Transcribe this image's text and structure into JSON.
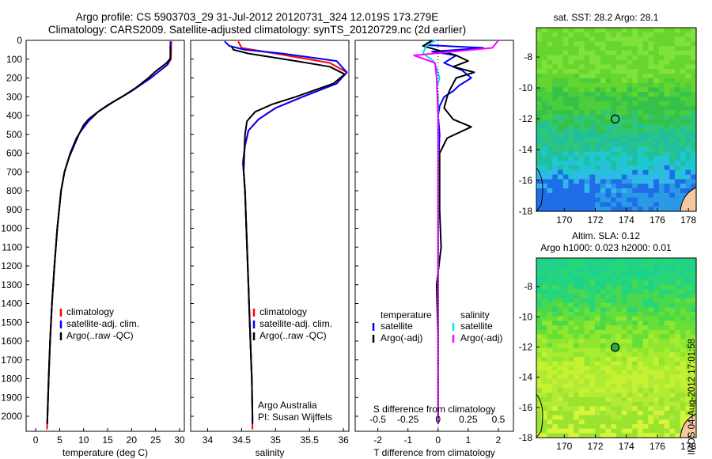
{
  "header": {
    "line1": "Argo profile: CS 5903703_29 31-Jul-2012 20120731_324 12.019S 173.279E",
    "line2": "Climatology: CARS2009. Satellite-adjusted climatology: synTS_20120729.nc (2d earlier)"
  },
  "colors": {
    "climatology": "#ff0000",
    "satellite": "#0000ff",
    "argo": "#000000",
    "sat_salinity": "#00e5ee",
    "argo_salinity": "#ff00ff"
  },
  "chart_data": [
    {
      "type": "line",
      "xlabel": "temperature (deg C)",
      "xticks": [
        0,
        5,
        10,
        15,
        20,
        25,
        30
      ],
      "xlim": [
        -2,
        31
      ],
      "ylim": [
        0,
        2080
      ],
      "yticks": [
        0,
        100,
        200,
        300,
        400,
        500,
        600,
        700,
        800,
        900,
        1000,
        1100,
        1200,
        1300,
        1400,
        1500,
        1600,
        1700,
        1800,
        1900,
        2000
      ],
      "legend": [
        "climatology",
        "satellite-adj. clim.",
        "Argo(..raw -QC)"
      ],
      "series": [
        {
          "name": "climatology",
          "color": "#ff0000",
          "points": [
            [
              28.3,
              5
            ],
            [
              28.2,
              100
            ],
            [
              27.5,
              130
            ],
            [
              24,
              200
            ],
            [
              20,
              270
            ],
            [
              16,
              330
            ],
            [
              13,
              380
            ],
            [
              11,
              430
            ],
            [
              9.5,
              480
            ],
            [
              8.5,
              520
            ],
            [
              7.2,
              600
            ],
            [
              6,
              700
            ],
            [
              5.3,
              800
            ],
            [
              4.9,
              900
            ],
            [
              4.5,
              1000
            ],
            [
              3.9,
              1200
            ],
            [
              3.4,
              1400
            ],
            [
              3.0,
              1600
            ],
            [
              2.7,
              1800
            ],
            [
              2.45,
              2000
            ],
            [
              2.35,
              2070
            ]
          ]
        },
        {
          "name": "satellite-adj. clim.",
          "color": "#0000ff",
          "points": [
            [
              28.1,
              5
            ],
            [
              28.1,
              100
            ],
            [
              27.4,
              130
            ],
            [
              24,
              200
            ],
            [
              20,
              270
            ],
            [
              16,
              330
            ],
            [
              13,
              380
            ],
            [
              11,
              430
            ],
            [
              9.5,
              480
            ],
            [
              8.5,
              520
            ],
            [
              7.2,
              600
            ],
            [
              6,
              700
            ],
            [
              5.3,
              800
            ],
            [
              4.9,
              900
            ],
            [
              4.5,
              1000
            ],
            [
              3.9,
              1200
            ],
            [
              3.4,
              1400
            ],
            [
              3.0,
              1600
            ],
            [
              2.7,
              1800
            ],
            [
              2.45,
              2000
            ],
            [
              2.4,
              2040
            ]
          ]
        },
        {
          "name": "Argo(..raw -QC)",
          "color": "#000000",
          "points": [
            [
              28.1,
              30
            ],
            [
              28.1,
              95
            ],
            [
              27.3,
              120
            ],
            [
              25,
              165
            ],
            [
              23.5,
              200
            ],
            [
              21,
              250
            ],
            [
              18,
              300
            ],
            [
              15,
              345
            ],
            [
              13,
              380
            ],
            [
              11,
              420
            ],
            [
              10,
              450
            ],
            [
              9,
              500
            ],
            [
              8,
              560
            ],
            [
              7,
              620
            ],
            [
              6,
              700
            ],
            [
              5.3,
              800
            ],
            [
              4.9,
              900
            ],
            [
              4.5,
              1000
            ],
            [
              3.9,
              1200
            ],
            [
              3.4,
              1400
            ],
            [
              3.0,
              1600
            ],
            [
              2.7,
              1800
            ],
            [
              2.45,
              2000
            ],
            [
              2.4,
              2040
            ]
          ]
        }
      ]
    },
    {
      "type": "line",
      "xlabel": "salinity",
      "xticks": [
        34,
        34.5,
        35,
        35.5,
        36
      ],
      "xlim": [
        33.75,
        36.08
      ],
      "ylim": [
        0,
        2080
      ],
      "legend": [
        "climatology",
        "satellite-adj. clim.",
        "Argo(..raw -QC)"
      ],
      "annotation": [
        "Argo Australia",
        "PI: Susan Wijffels"
      ],
      "series": [
        {
          "name": "climatology",
          "color": "#ff0000",
          "points": [
            [
              34.45,
              5
            ],
            [
              34.5,
              40
            ],
            [
              35.0,
              70
            ],
            [
              35.8,
              120
            ],
            [
              36.05,
              170
            ],
            [
              35.9,
              230
            ],
            [
              35.4,
              300
            ],
            [
              35.0,
              360
            ],
            [
              34.75,
              420
            ],
            [
              34.6,
              480
            ],
            [
              34.55,
              560
            ],
            [
              34.52,
              650
            ],
            [
              34.55,
              800
            ],
            [
              34.57,
              1000
            ],
            [
              34.6,
              1300
            ],
            [
              34.63,
              1600
            ],
            [
              34.65,
              1800
            ],
            [
              34.66,
              2000
            ],
            [
              34.66,
              2070
            ]
          ]
        },
        {
          "name": "satellite-adj. clim.",
          "color": "#0000ff",
          "points": [
            [
              34.25,
              5
            ],
            [
              34.32,
              30
            ],
            [
              34.55,
              50
            ],
            [
              35.1,
              70
            ],
            [
              35.9,
              110
            ],
            [
              36.05,
              170
            ],
            [
              35.9,
              230
            ],
            [
              35.4,
              300
            ],
            [
              35.0,
              360
            ],
            [
              34.75,
              420
            ],
            [
              34.6,
              480
            ],
            [
              34.55,
              560
            ],
            [
              34.52,
              650
            ],
            [
              34.55,
              800
            ],
            [
              34.57,
              1000
            ],
            [
              34.6,
              1300
            ],
            [
              34.63,
              1600
            ],
            [
              34.65,
              1800
            ],
            [
              34.66,
              2000
            ],
            [
              34.66,
              2040
            ]
          ]
        },
        {
          "name": "Argo(..raw -QC)",
          "color": "#000000",
          "points": [
            [
              34.35,
              30
            ],
            [
              34.38,
              50
            ],
            [
              34.6,
              70
            ],
            [
              35.3,
              110
            ],
            [
              35.8,
              140
            ],
            [
              36.02,
              180
            ],
            [
              35.85,
              230
            ],
            [
              35.3,
              300
            ],
            [
              34.95,
              340
            ],
            [
              34.7,
              380
            ],
            [
              34.58,
              430
            ],
            [
              34.55,
              500
            ],
            [
              34.54,
              600
            ],
            [
              34.53,
              700
            ],
            [
              34.55,
              800
            ],
            [
              34.57,
              1000
            ],
            [
              34.6,
              1300
            ],
            [
              34.63,
              1600
            ],
            [
              34.65,
              1800
            ],
            [
              34.66,
              2000
            ],
            [
              34.66,
              2040
            ]
          ]
        }
      ]
    },
    {
      "type": "line",
      "xlabel": "T difference from climatology",
      "xticks": [
        -2,
        -1,
        0,
        1,
        2
      ],
      "xlim": [
        -2.75,
        2.5
      ],
      "top_axis_label": "S difference from climatology",
      "top_ticks": [
        "-0.5",
        "-0.25",
        "0",
        "0.25",
        "0.5"
      ],
      "ylim": [
        0,
        2080
      ],
      "legend": {
        "temperature": [
          "satellite",
          "Argo(-adj)"
        ],
        "salinity": [
          "satellite",
          "Argo(-adj)"
        ]
      },
      "legend_titles": [
        "temperature",
        "salinity"
      ],
      "series": [
        {
          "name": "temperature satellite",
          "color": "#0000ff",
          "points": [
            [
              -0.2,
              0
            ],
            [
              -0.4,
              25
            ],
            [
              1.5,
              40
            ],
            [
              -0.2,
              60
            ],
            [
              0.6,
              80
            ],
            [
              0.2,
              120
            ],
            [
              0.8,
              160
            ],
            [
              1.1,
              200
            ],
            [
              0.7,
              240
            ],
            [
              0.5,
              270
            ],
            [
              0.2,
              300
            ],
            [
              0.05,
              350
            ],
            [
              0.0,
              400
            ],
            [
              0.05,
              500
            ],
            [
              0.0,
              700
            ],
            [
              0.0,
              1000
            ],
            [
              0.0,
              2040
            ]
          ]
        },
        {
          "name": "temperature Argo(-adj)",
          "color": "#000000",
          "points": [
            [
              -0.2,
              0
            ],
            [
              -0.5,
              30
            ],
            [
              0.6,
              80
            ],
            [
              1.0,
              110
            ],
            [
              0.5,
              140
            ],
            [
              1.2,
              170
            ],
            [
              0.6,
              200
            ],
            [
              0.4,
              260
            ],
            [
              0.3,
              300
            ],
            [
              0.2,
              360
            ],
            [
              0.5,
              420
            ],
            [
              1.1,
              460
            ],
            [
              0.3,
              520
            ],
            [
              0.05,
              600
            ],
            [
              0.05,
              900
            ],
            [
              0.1,
              1100
            ],
            [
              -0.05,
              1300
            ],
            [
              0.0,
              1600
            ],
            [
              0.0,
              2040
            ]
          ]
        },
        {
          "name": "salinity satellite",
          "color": "#00e5ee",
          "points": [
            [
              -0.08,
              0
            ],
            [
              -0.4,
              30
            ],
            [
              -0.5,
              70
            ],
            [
              -0.15,
              110
            ],
            [
              -0.05,
              150
            ],
            [
              0.05,
              200
            ],
            [
              -0.05,
              250
            ],
            [
              0.0,
              300
            ],
            [
              0.0,
              400
            ],
            [
              0.0,
              600
            ],
            [
              0.0,
              1000
            ],
            [
              0.0,
              2040
            ]
          ]
        },
        {
          "name": "salinity Argo(-adj)",
          "color": "#ff00ff",
          "points": [
            [
              2.0,
              0
            ],
            [
              1.8,
              40
            ],
            [
              -0.8,
              80
            ],
            [
              -0.1,
              120
            ],
            [
              -0.05,
              200
            ],
            [
              0.0,
              400
            ],
            [
              0.0,
              700
            ],
            [
              0.0,
              2040
            ]
          ]
        }
      ]
    },
    {
      "type": "heatmap",
      "title": "sat. SST: 28.2  Argo: 28.1",
      "xticks": [
        170,
        172,
        174,
        176,
        178
      ],
      "yticks": [
        -8,
        -10,
        -12,
        -14,
        -16,
        -18
      ],
      "xlim": [
        168.2,
        178.5
      ],
      "ylim": [
        -18,
        -6.1
      ],
      "argo_location": [
        173.279,
        -12.019
      ]
    },
    {
      "type": "heatmap",
      "title": "Altim. SLA: 0.12",
      "subtitle": "Argo h1000: 0.023  h2000: 0.01",
      "xticks": [
        170,
        172,
        174,
        176,
        178
      ],
      "yticks": [
        -8,
        -10,
        -12,
        -14,
        -16,
        -18
      ],
      "xlim": [
        168.2,
        178.5
      ],
      "ylim": [
        -18,
        -6.1
      ],
      "argo_location": [
        173.279,
        -12.019
      ]
    }
  ],
  "timestamp": "IMOS 04-Aug-2012 17:01:58"
}
